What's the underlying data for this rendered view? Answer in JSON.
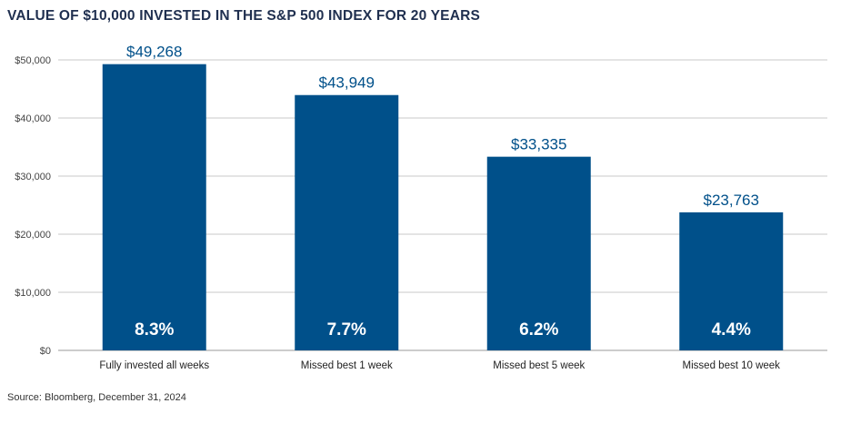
{
  "chart_data": {
    "type": "bar",
    "title": "VALUE OF $10,000 INVESTED IN THE S&P 500 INDEX FOR 20 YEARS",
    "categories": [
      "Fully invested all weeks",
      "Missed best 1 week",
      "Missed best 5 week",
      "Missed best 10 week"
    ],
    "values": [
      49268,
      43949,
      33335,
      23763
    ],
    "value_labels": [
      "$49,268",
      "$43,949",
      "$33,335",
      "$23,763"
    ],
    "return_labels": [
      "8.3%",
      "7.7%",
      "6.2%",
      "4.4%"
    ],
    "ylim": [
      0,
      50000
    ],
    "yticks": [
      0,
      10000,
      20000,
      30000,
      40000,
      50000
    ],
    "ytick_labels": [
      "$0",
      "$10,000",
      "$20,000",
      "$30,000",
      "$40,000",
      "$50,000"
    ],
    "xlabel": "",
    "ylabel": "",
    "grid": true,
    "bar_color": "#00508a",
    "label_color": "#00508a"
  },
  "source": "Source: Bloomberg, December 31, 2024"
}
